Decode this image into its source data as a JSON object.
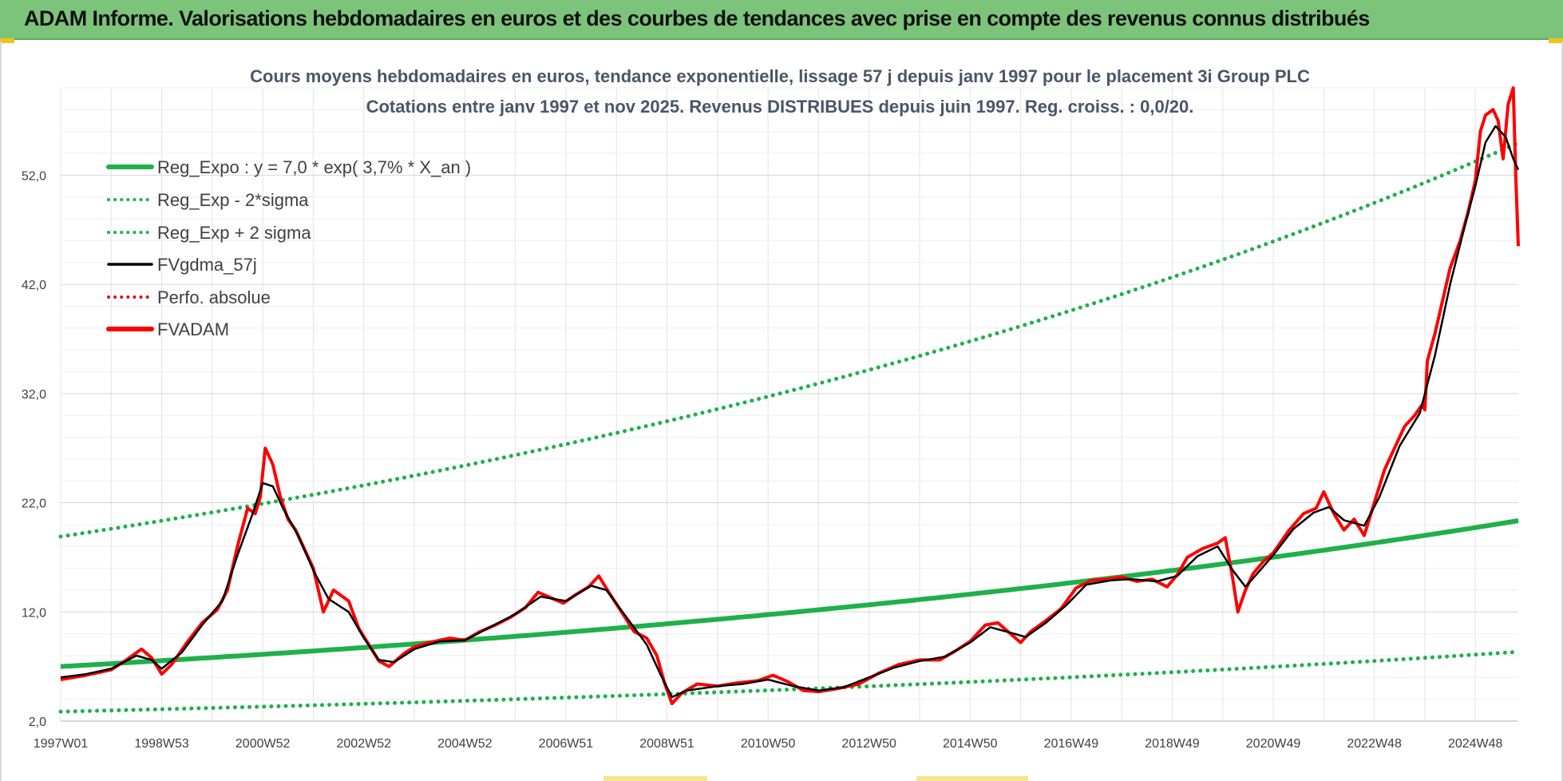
{
  "banner": {
    "title": "ADAM Informe. Valorisations hebdomadaires en euros et des courbes de tendances avec prise en compte des revenus connus distribués"
  },
  "chart_data": {
    "type": "line",
    "title_line1": "Cours moyens hebdomadaires en euros, tendance exponentielle, lissage 57 j depuis janv 1997 pour le placement 3i Group PLC",
    "title_line2": "Cotations entre janv 1997 et nov 2025. Revenus DISTRIBUES depuis juin 1997. Reg. croiss. : 0,0/20.",
    "x_range_years": [
      1997.0,
      2025.85
    ],
    "x_ticks": [
      {
        "label": "1997W01",
        "year": 1997.0
      },
      {
        "label": "1998W53",
        "year": 1999.0
      },
      {
        "label": "2000W52",
        "year": 2001.0
      },
      {
        "label": "2002W52",
        "year": 2003.0
      },
      {
        "label": "2004W52",
        "year": 2005.0
      },
      {
        "label": "2006W51",
        "year": 2007.0
      },
      {
        "label": "2008W51",
        "year": 2009.0
      },
      {
        "label": "2010W50",
        "year": 2011.0
      },
      {
        "label": "2012W50",
        "year": 2013.0
      },
      {
        "label": "2014W50",
        "year": 2015.0
      },
      {
        "label": "2016W49",
        "year": 2017.0
      },
      {
        "label": "2018W49",
        "year": 2019.0
      },
      {
        "label": "2020W49",
        "year": 2021.0
      },
      {
        "label": "2022W48",
        "year": 2023.0
      },
      {
        "label": "2024W48",
        "year": 2025.0
      }
    ],
    "ylim": [
      2.0,
      60.0
    ],
    "y_ticks": [
      {
        "label": "2,0",
        "value": 2
      },
      {
        "label": "12,0",
        "value": 12
      },
      {
        "label": "22,0",
        "value": 22
      },
      {
        "label": "32,0",
        "value": 32
      },
      {
        "label": "42,0",
        "value": 42
      },
      {
        "label": "52,0",
        "value": 52
      }
    ],
    "legend": [
      {
        "name": "Reg_Expo : y = 7,0 * exp( 3,7% *  X_an )",
        "color": "#1fb04a",
        "style": "solid-thick"
      },
      {
        "name": "Reg_Exp - 2*sigma",
        "color": "#1fb04a",
        "style": "dotted"
      },
      {
        "name": "Reg_Exp + 2 sigma",
        "color": "#1fb04a",
        "style": "dotted"
      },
      {
        "name": "FVgdma_57j",
        "color": "#000000",
        "style": "solid"
      },
      {
        "name": "Perfo. absolue",
        "color": "#e01010",
        "style": "dotted"
      },
      {
        "name": "FVADAM",
        "color": "#ff0000",
        "style": "solid-thick"
      }
    ],
    "regression": {
      "base": 7.0,
      "rate": 0.037,
      "lower_factor": 0.41,
      "upper_factor": 2.7
    },
    "series": [
      {
        "name": "FVADAM",
        "points": [
          [
            1997.0,
            5.8
          ],
          [
            1997.5,
            6.2
          ],
          [
            1998.0,
            6.7
          ],
          [
            1998.3,
            7.6
          ],
          [
            1998.6,
            8.6
          ],
          [
            1998.8,
            7.8
          ],
          [
            1999.0,
            6.3
          ],
          [
            1999.2,
            7.2
          ],
          [
            1999.5,
            9.2
          ],
          [
            1999.8,
            11.0
          ],
          [
            2000.1,
            12.2
          ],
          [
            2000.3,
            14.0
          ],
          [
            2000.5,
            18.0
          ],
          [
            2000.7,
            21.5
          ],
          [
            2000.85,
            21.0
          ],
          [
            2000.95,
            22.5
          ],
          [
            2001.05,
            27.0
          ],
          [
            2001.2,
            25.5
          ],
          [
            2001.35,
            22.5
          ],
          [
            2001.5,
            20.5
          ],
          [
            2001.65,
            19.5
          ],
          [
            2001.85,
            17.5
          ],
          [
            2002.0,
            16.0
          ],
          [
            2002.2,
            12.0
          ],
          [
            2002.4,
            14.0
          ],
          [
            2002.7,
            13.0
          ],
          [
            2002.9,
            10.5
          ],
          [
            2003.1,
            9.0
          ],
          [
            2003.3,
            7.5
          ],
          [
            2003.5,
            7.0
          ],
          [
            2003.8,
            8.2
          ],
          [
            2004.0,
            8.8
          ],
          [
            2004.3,
            9.2
          ],
          [
            2004.7,
            9.6
          ],
          [
            2005.0,
            9.4
          ],
          [
            2005.3,
            10.2
          ],
          [
            2005.6,
            10.8
          ],
          [
            2005.9,
            11.5
          ],
          [
            2006.2,
            12.4
          ],
          [
            2006.45,
            13.8
          ],
          [
            2006.7,
            13.3
          ],
          [
            2006.95,
            12.8
          ],
          [
            2007.2,
            13.6
          ],
          [
            2007.45,
            14.3
          ],
          [
            2007.65,
            15.3
          ],
          [
            2007.85,
            13.8
          ],
          [
            2008.1,
            12.0
          ],
          [
            2008.35,
            10.2
          ],
          [
            2008.6,
            9.6
          ],
          [
            2008.8,
            8.0
          ],
          [
            2008.95,
            5.5
          ],
          [
            2009.1,
            3.6
          ],
          [
            2009.3,
            4.6
          ],
          [
            2009.6,
            5.4
          ],
          [
            2010.0,
            5.2
          ],
          [
            2010.4,
            5.5
          ],
          [
            2010.8,
            5.7
          ],
          [
            2011.1,
            6.2
          ],
          [
            2011.4,
            5.6
          ],
          [
            2011.7,
            4.8
          ],
          [
            2012.0,
            4.7
          ],
          [
            2012.4,
            5.0
          ],
          [
            2012.8,
            5.4
          ],
          [
            2013.2,
            6.4
          ],
          [
            2013.6,
            7.2
          ],
          [
            2014.0,
            7.6
          ],
          [
            2014.4,
            7.6
          ],
          [
            2014.7,
            8.4
          ],
          [
            2015.0,
            9.3
          ],
          [
            2015.3,
            10.8
          ],
          [
            2015.55,
            11.0
          ],
          [
            2015.8,
            10.0
          ],
          [
            2016.0,
            9.2
          ],
          [
            2016.2,
            10.2
          ],
          [
            2016.5,
            11.2
          ],
          [
            2016.8,
            12.3
          ],
          [
            2017.1,
            14.2
          ],
          [
            2017.4,
            14.9
          ],
          [
            2017.7,
            15.0
          ],
          [
            2018.0,
            15.2
          ],
          [
            2018.3,
            14.8
          ],
          [
            2018.6,
            15.0
          ],
          [
            2018.9,
            14.3
          ],
          [
            2019.1,
            15.4
          ],
          [
            2019.3,
            17.0
          ],
          [
            2019.6,
            17.8
          ],
          [
            2019.9,
            18.3
          ],
          [
            2020.05,
            18.8
          ],
          [
            2020.2,
            15.0
          ],
          [
            2020.3,
            12.0
          ],
          [
            2020.45,
            14.0
          ],
          [
            2020.6,
            15.5
          ],
          [
            2020.8,
            16.6
          ],
          [
            2021.0,
            17.4
          ],
          [
            2021.3,
            19.4
          ],
          [
            2021.6,
            21.0
          ],
          [
            2021.85,
            21.5
          ],
          [
            2022.0,
            23.0
          ],
          [
            2022.2,
            21.0
          ],
          [
            2022.4,
            19.5
          ],
          [
            2022.6,
            20.5
          ],
          [
            2022.8,
            19.0
          ],
          [
            2023.0,
            22.0
          ],
          [
            2023.2,
            25.0
          ],
          [
            2023.4,
            27.0
          ],
          [
            2023.6,
            29.0
          ],
          [
            2023.8,
            30.0
          ],
          [
            2023.95,
            31.0
          ],
          [
            2024.0,
            30.5
          ],
          [
            2024.05,
            35.0
          ],
          [
            2024.2,
            37.5
          ],
          [
            2024.35,
            40.5
          ],
          [
            2024.5,
            43.5
          ],
          [
            2024.7,
            46.0
          ],
          [
            2024.85,
            48.5
          ],
          [
            2025.0,
            51.5
          ],
          [
            2025.1,
            56.0
          ],
          [
            2025.2,
            57.5
          ],
          [
            2025.35,
            58.0
          ],
          [
            2025.45,
            57.0
          ],
          [
            2025.55,
            53.5
          ],
          [
            2025.65,
            58.5
          ],
          [
            2025.75,
            60.0
          ],
          [
            2025.8,
            52.0
          ],
          [
            2025.85,
            45.5
          ]
        ]
      },
      {
        "name": "FVgdma_57j",
        "points": [
          [
            1997.0,
            6.0
          ],
          [
            1997.5,
            6.3
          ],
          [
            1998.0,
            6.8
          ],
          [
            1998.5,
            8.0
          ],
          [
            1998.8,
            7.6
          ],
          [
            1999.0,
            6.8
          ],
          [
            1999.4,
            8.3
          ],
          [
            1999.8,
            10.8
          ],
          [
            2000.2,
            13.0
          ],
          [
            2000.5,
            17.2
          ],
          [
            2000.8,
            21.0
          ],
          [
            2001.0,
            23.8
          ],
          [
            2001.2,
            23.5
          ],
          [
            2001.4,
            21.5
          ],
          [
            2001.7,
            19.0
          ],
          [
            2002.0,
            15.8
          ],
          [
            2002.3,
            13.2
          ],
          [
            2002.7,
            12.0
          ],
          [
            2003.0,
            9.6
          ],
          [
            2003.3,
            7.6
          ],
          [
            2003.6,
            7.4
          ],
          [
            2004.0,
            8.6
          ],
          [
            2004.5,
            9.3
          ],
          [
            2005.0,
            9.4
          ],
          [
            2005.5,
            10.6
          ],
          [
            2006.0,
            11.8
          ],
          [
            2006.5,
            13.4
          ],
          [
            2007.0,
            13.0
          ],
          [
            2007.5,
            14.4
          ],
          [
            2007.8,
            14.0
          ],
          [
            2008.2,
            11.5
          ],
          [
            2008.6,
            9.0
          ],
          [
            2008.9,
            6.0
          ],
          [
            2009.1,
            4.2
          ],
          [
            2009.4,
            4.8
          ],
          [
            2010.0,
            5.2
          ],
          [
            2010.5,
            5.4
          ],
          [
            2011.0,
            5.8
          ],
          [
            2011.5,
            5.2
          ],
          [
            2012.0,
            4.8
          ],
          [
            2012.5,
            5.1
          ],
          [
            2013.0,
            6.0
          ],
          [
            2013.5,
            6.9
          ],
          [
            2014.0,
            7.5
          ],
          [
            2014.5,
            7.9
          ],
          [
            2015.0,
            9.2
          ],
          [
            2015.4,
            10.6
          ],
          [
            2015.8,
            10.1
          ],
          [
            2016.1,
            9.7
          ],
          [
            2016.5,
            11.0
          ],
          [
            2016.9,
            12.6
          ],
          [
            2017.3,
            14.5
          ],
          [
            2017.8,
            14.9
          ],
          [
            2018.2,
            15.0
          ],
          [
            2018.7,
            14.8
          ],
          [
            2019.1,
            15.3
          ],
          [
            2019.5,
            17.1
          ],
          [
            2019.9,
            18.0
          ],
          [
            2020.2,
            15.8
          ],
          [
            2020.45,
            14.3
          ],
          [
            2020.7,
            15.6
          ],
          [
            2021.0,
            17.2
          ],
          [
            2021.4,
            19.6
          ],
          [
            2021.8,
            21.1
          ],
          [
            2022.1,
            21.6
          ],
          [
            2022.4,
            20.4
          ],
          [
            2022.8,
            19.9
          ],
          [
            2023.1,
            22.5
          ],
          [
            2023.5,
            27.2
          ],
          [
            2023.9,
            30.2
          ],
          [
            2024.2,
            35.5
          ],
          [
            2024.5,
            42.0
          ],
          [
            2024.8,
            47.5
          ],
          [
            2025.0,
            51.0
          ],
          [
            2025.2,
            55.0
          ],
          [
            2025.4,
            56.5
          ],
          [
            2025.6,
            55.5
          ],
          [
            2025.75,
            53.5
          ],
          [
            2025.85,
            52.5
          ]
        ]
      }
    ]
  }
}
